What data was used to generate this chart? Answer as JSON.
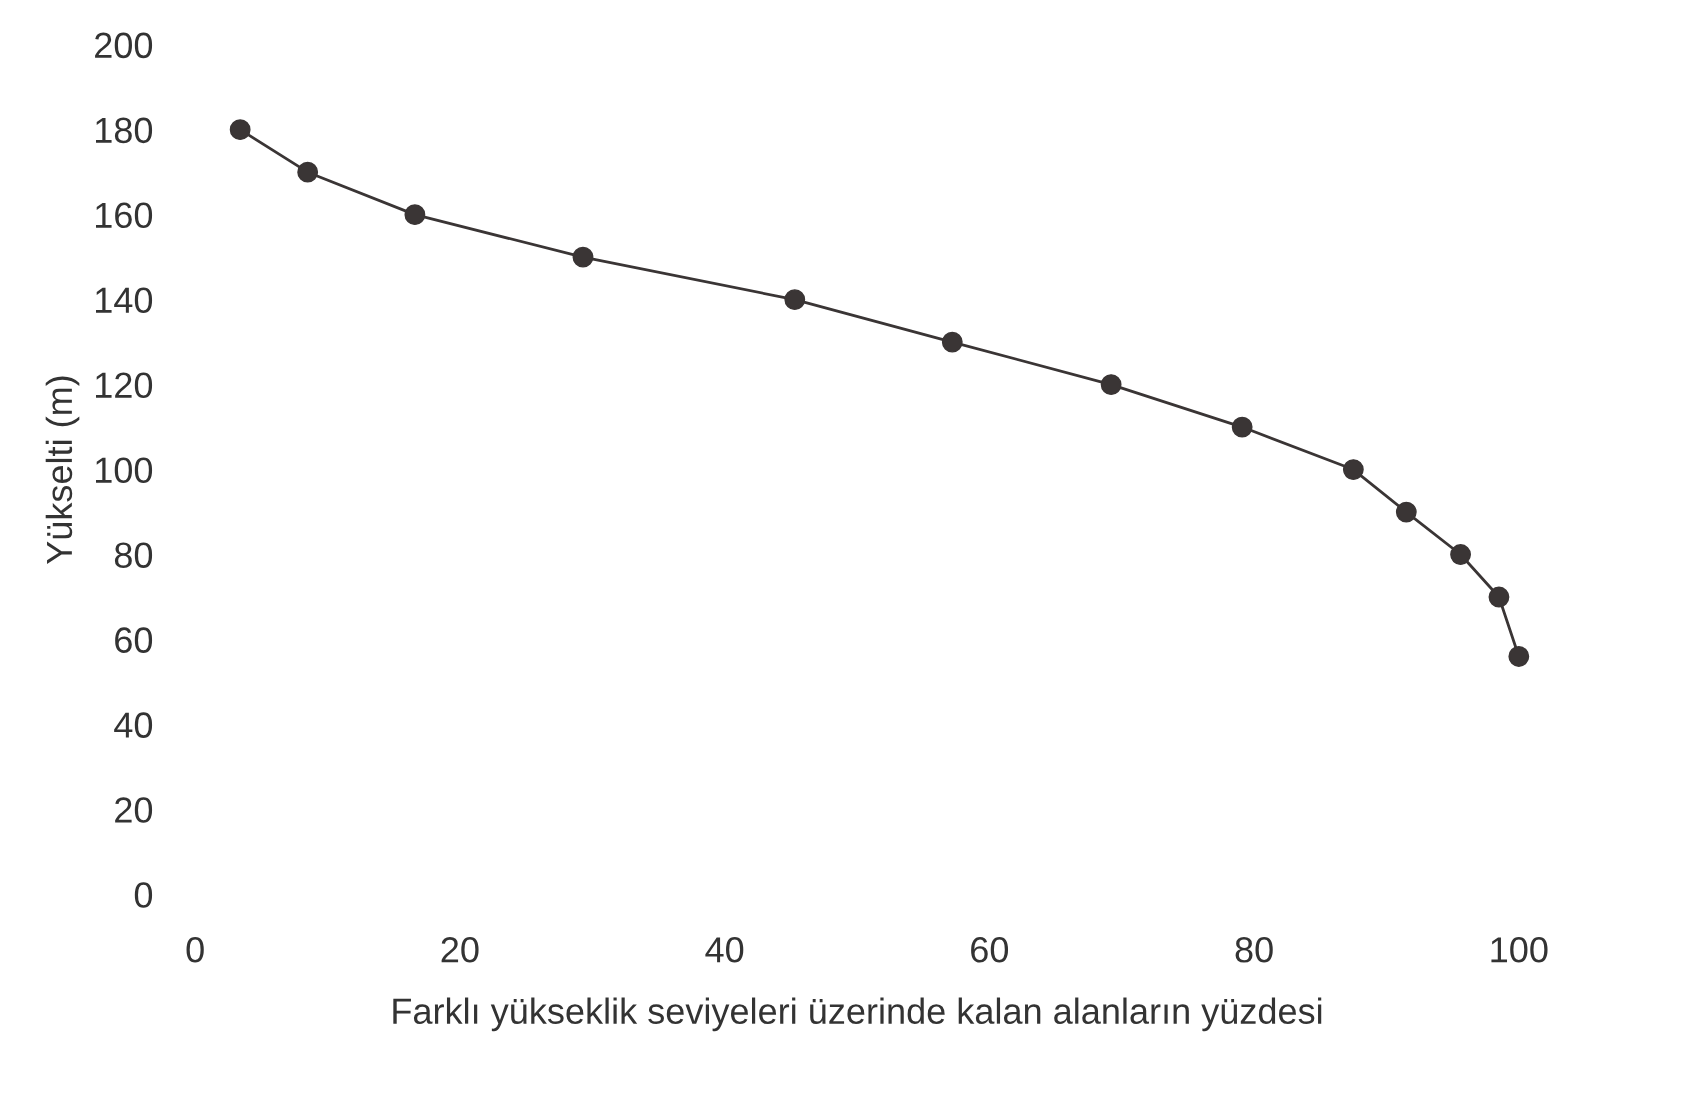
{
  "chart_data": {
    "type": "line",
    "xlabel": "Farklı yükseklik seviyeleri üzerinde kalan alanların yüzdesi",
    "ylabel": "Yükselti (m)",
    "x": [
      3.4,
      8.5,
      16.6,
      29.3,
      45.3,
      57.2,
      69.2,
      79.1,
      87.5,
      91.5,
      95.6,
      98.5,
      100
    ],
    "series": [
      {
        "color": "#3a3535",
        "values": [
          180,
          170,
          160,
          150,
          140,
          130,
          120,
          110,
          100,
          90,
          80,
          70,
          56
        ]
      }
    ],
    "marker": "circle",
    "line_style": "solid",
    "grid": false,
    "xlim": [
      0,
      100
    ],
    "ylim": [
      0,
      200
    ],
    "xticks": [
      0,
      20,
      40,
      60,
      80,
      100
    ],
    "yticks": [
      0,
      20,
      40,
      60,
      80,
      100,
      120,
      140,
      160,
      180,
      200
    ]
  }
}
